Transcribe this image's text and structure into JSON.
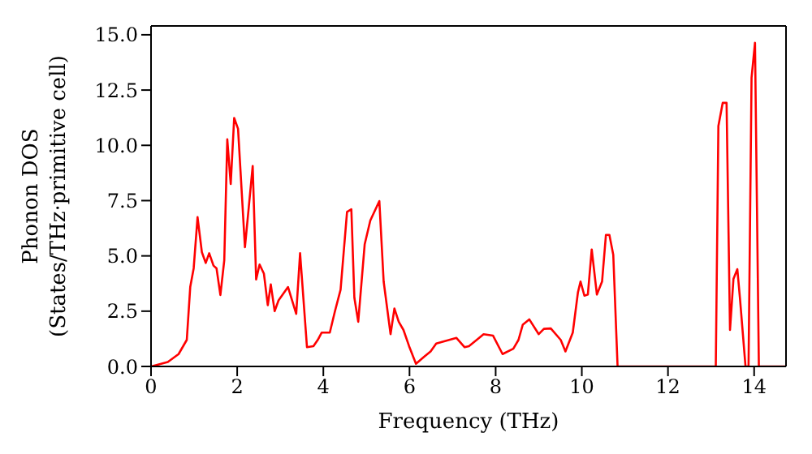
{
  "chart_data": {
    "type": "line",
    "xlabel": "Frequency (THz)",
    "ylabel": "Phonon DOS\n(States/THz·primitive cell)",
    "x": [
      0,
      0.39,
      0.64,
      0.83,
      0.91,
      0.99,
      1.08,
      1.18,
      1.27,
      1.35,
      1.45,
      1.52,
      1.61,
      1.7,
      1.77,
      1.85,
      1.93,
      2.02,
      2.18,
      2.36,
      2.44,
      2.52,
      2.62,
      2.71,
      2.78,
      2.87,
      2.96,
      3.18,
      3.37,
      3.46,
      3.62,
      3.77,
      3.87,
      3.96,
      4.15,
      4.27,
      4.4,
      4.55,
      4.65,
      4.72,
      4.81,
      4.96,
      5.09,
      5.3,
      5.4,
      5.56,
      5.65,
      5.75,
      5.86,
      5.99,
      6.15,
      6.34,
      6.49,
      6.62,
      7.09,
      7.28,
      7.38,
      7.56,
      7.72,
      7.94,
      8.16,
      8.41,
      8.53,
      8.63,
      8.78,
      9.0,
      9.12,
      9.28,
      9.51,
      9.62,
      9.79,
      9.91,
      9.97,
      10.06,
      10.14,
      10.23,
      10.35,
      10.47,
      10.56,
      10.64,
      10.73,
      10.83,
      13.11,
      13.17,
      13.27,
      13.36,
      13.44,
      13.52,
      13.61,
      13.67,
      13.8,
      13.87,
      13.94,
      14.02,
      14.11,
      14.74
    ],
    "series": [
      {
        "color": "#ff0000",
        "values": [
          0,
          0.2,
          0.56,
          1.2,
          3.59,
          4.44,
          6.75,
          5.17,
          4.68,
          5.12,
          4.56,
          4.44,
          3.23,
          4.8,
          10.27,
          8.25,
          11.24,
          10.75,
          5.39,
          9.06,
          3.93,
          4.61,
          4.2,
          2.77,
          3.71,
          2.5,
          2.99,
          3.59,
          2.38,
          5.12,
          0.87,
          0.92,
          1.2,
          1.53,
          1.53,
          2.5,
          3.47,
          6.99,
          7.11,
          3.11,
          2.02,
          5.53,
          6.6,
          7.48,
          3.84,
          1.46,
          2.62,
          2.02,
          1.65,
          0.92,
          0.12,
          0.44,
          0.68,
          1.04,
          1.29,
          0.87,
          0.92,
          1.2,
          1.46,
          1.39,
          0.56,
          0.8,
          1.2,
          1.89,
          2.13,
          1.46,
          1.7,
          1.72,
          1.2,
          0.68,
          1.53,
          3.35,
          3.84,
          3.2,
          3.25,
          5.29,
          3.25,
          3.84,
          5.95,
          5.95,
          5.05,
          0,
          0,
          10.87,
          11.92,
          11.92,
          1.65,
          3.96,
          4.4,
          3.1,
          0,
          0,
          13.06,
          14.64,
          0,
          0
        ]
      }
    ],
    "xlim": [
      0,
      14.74
    ],
    "xticks": [
      0,
      2,
      4,
      6,
      8,
      10,
      12,
      14
    ],
    "ylim": [
      0,
      15.4
    ],
    "yticks": [
      {
        "value": 0,
        "label": "0.0"
      },
      {
        "value": 2.5,
        "label": "2.5"
      },
      {
        "value": 5,
        "label": "5.0"
      },
      {
        "value": 7.5,
        "label": "7.5"
      },
      {
        "value": 10,
        "label": "10.0"
      },
      {
        "value": 12.5,
        "label": "12.5"
      },
      {
        "value": 15,
        "label": "15.0"
      }
    ],
    "grid": false,
    "legend": false,
    "marker": "none",
    "line_style": "solid"
  }
}
